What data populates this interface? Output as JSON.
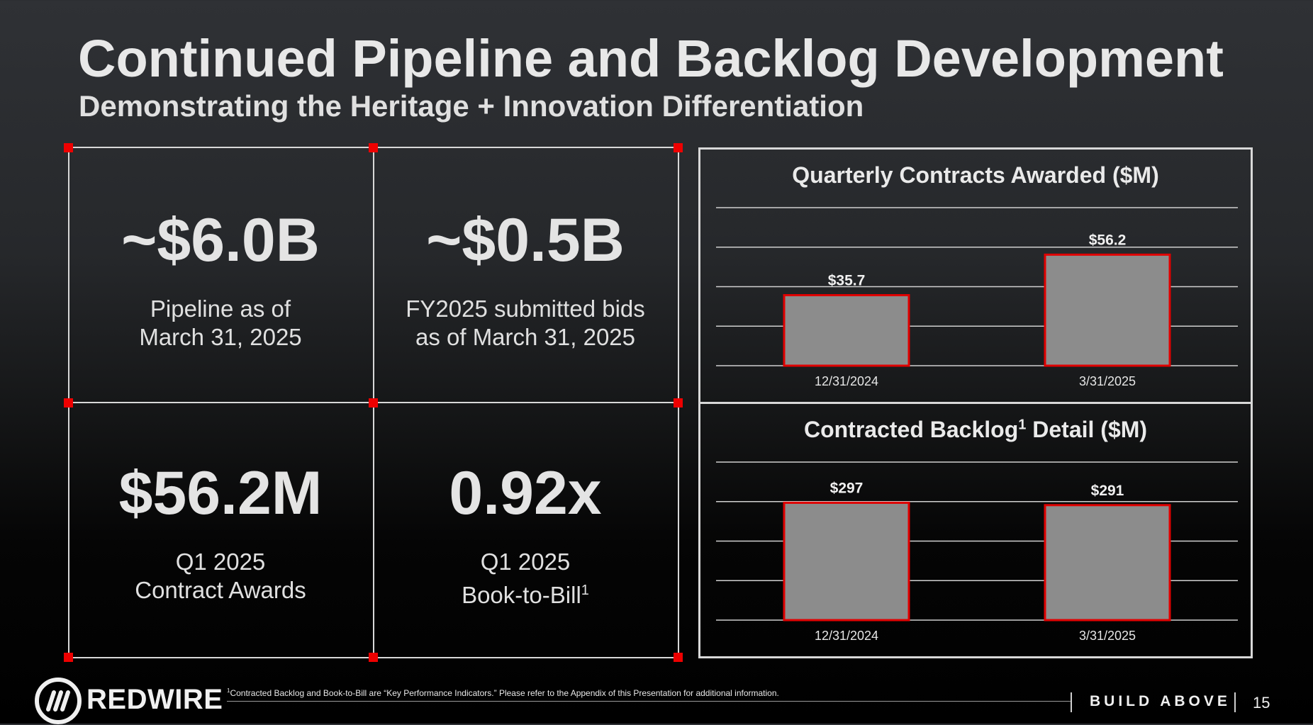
{
  "header": {
    "title": "Continued Pipeline and Backlog Development",
    "subtitle": "Demonstrating the Heritage + Innovation Differentiation"
  },
  "stats": [
    {
      "value": "~$6.0B",
      "label_line1": "Pipeline as of",
      "label_line2": "March 31, 2025"
    },
    {
      "value": "~$0.5B",
      "label_line1": "FY2025 submitted bids",
      "label_line2": "as of March 31, 2025"
    },
    {
      "value": "$56.2M",
      "label_line1": "Q1 2025",
      "label_line2": "Contract Awards"
    },
    {
      "value": "0.92x",
      "label_line1": "Q1 2025",
      "label_line2": "Book-to-Bill",
      "footnote_marker": "1"
    }
  ],
  "chart_data": [
    {
      "type": "bar",
      "title": "Quarterly Contracts Awarded ($M)",
      "categories": [
        "12/31/2024",
        "3/31/2025"
      ],
      "values": [
        35.7,
        56.2
      ],
      "data_labels": [
        "$35.7",
        "$56.2"
      ],
      "ylim": [
        0,
        80
      ],
      "gridlines": [
        0,
        20,
        40,
        60,
        80
      ],
      "bar_color": "#8c8c8c",
      "bar_border_color": "#e00000"
    },
    {
      "type": "bar",
      "title_main": "Contracted Backlog",
      "title_marker": "1",
      "title_rest": " Detail ($M)",
      "categories": [
        "12/31/2024",
        "3/31/2025"
      ],
      "values": [
        297,
        291
      ],
      "data_labels": [
        "$297",
        "$291"
      ],
      "ylim": [
        0,
        400
      ],
      "gridlines": [
        0,
        100,
        200,
        300,
        400
      ],
      "bar_color": "#8c8c8c",
      "bar_border_color": "#e00000"
    }
  ],
  "footer": {
    "note_marker": "1",
    "note": "Contracted Backlog and Book-to-Bill are “Key Performance Indicators.”  Please refer to the Appendix of this Presentation for additional information.",
    "logo_text": "REDWIRE",
    "tagline": "BUILD ABOVE",
    "page_number": "15"
  },
  "colors": {
    "accent": "#ee0000",
    "grid": "#d8d8d8"
  }
}
